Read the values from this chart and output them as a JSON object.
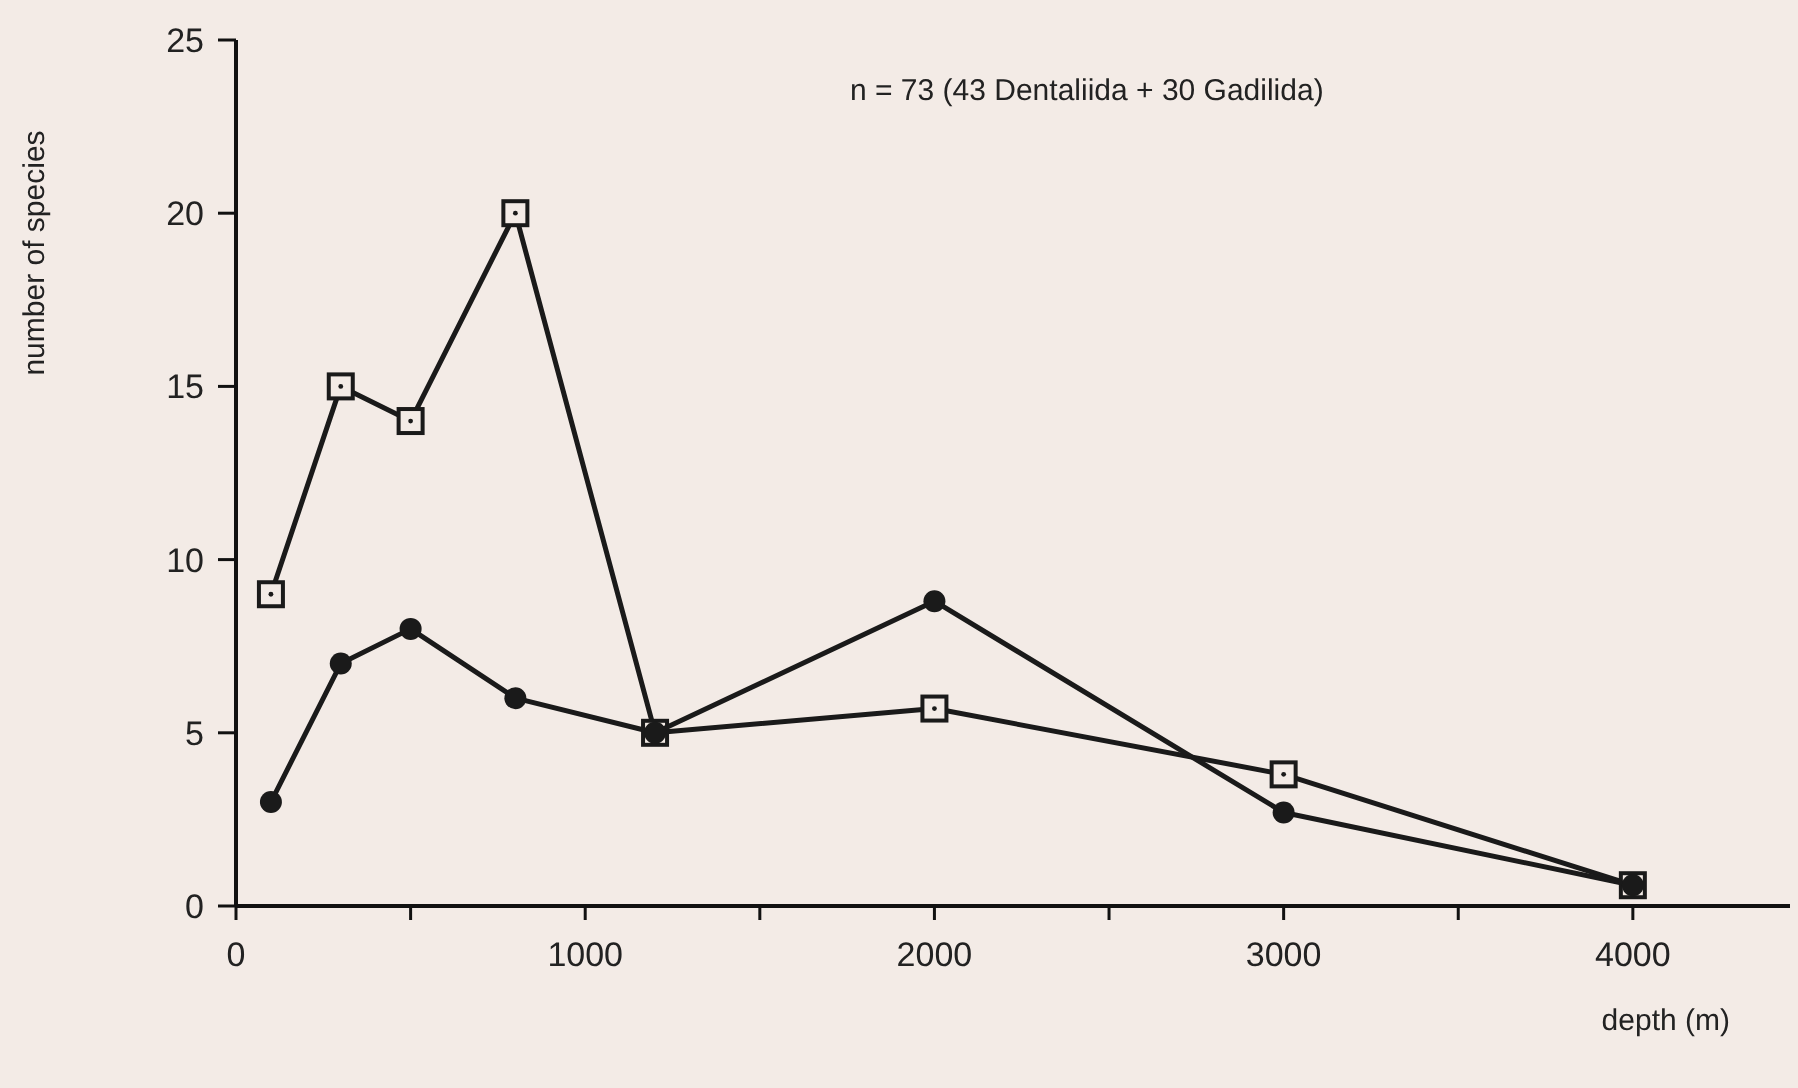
{
  "chart_data": {
    "type": "line",
    "xlabel": "depth (m)",
    "ylabel": "number of species",
    "annotations": [
      "n = 73 (43 Dentaliida + 30 Gadilida)"
    ],
    "x": [
      100,
      300,
      500,
      800,
      1200,
      2000,
      3000,
      4000
    ],
    "series": [
      {
        "color": "#1a1a1a",
        "marker": "square",
        "values": [
          9,
          15,
          14,
          20,
          5,
          5.7,
          3.8,
          0.6
        ]
      },
      {
        "color": "#1a1a1a",
        "marker": "circle",
        "values": [
          3,
          7,
          8,
          6,
          5,
          8.8,
          2.7,
          0.6
        ]
      }
    ],
    "xlim": [
      0,
      4450
    ],
    "xticks": [
      0,
      {
        "value": 500,
        "label": null
      },
      1000,
      {
        "value": 1500,
        "label": null
      },
      2000,
      {
        "value": 2500,
        "label": null
      },
      3000,
      {
        "value": 3500,
        "label": null
      },
      4000
    ],
    "ylim": [
      0,
      25
    ],
    "yticks": [
      0,
      5,
      10,
      15,
      20,
      25
    ],
    "grid": false,
    "line_style": "solid"
  }
}
